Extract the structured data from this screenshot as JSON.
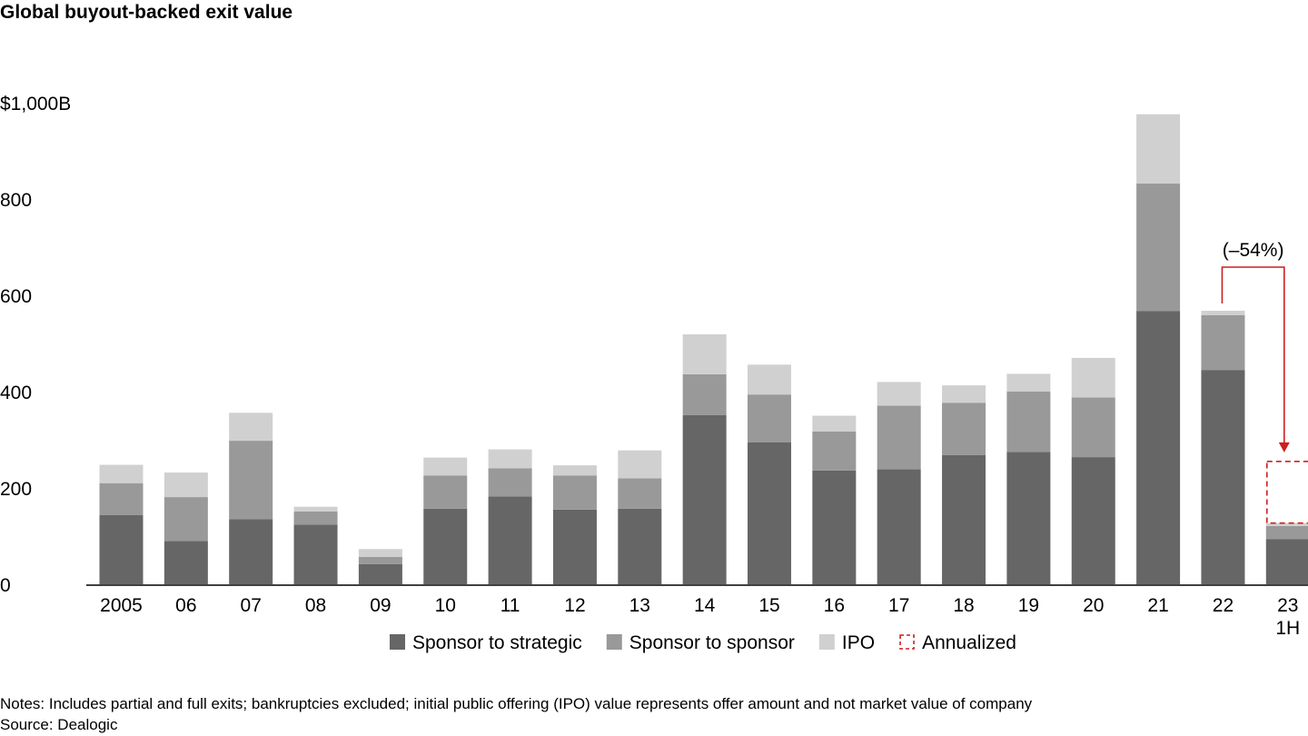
{
  "title": "Global buyout-backed exit value",
  "notes": "Notes: Includes partial and full exits; bankruptcies excluded; initial public offering (IPO) value represents offer amount and not market value of company",
  "source": "Source: Dealogic",
  "colors": {
    "sponsor_to_strategic": "#666666",
    "sponsor_to_sponsor": "#999999",
    "ipo": "#d0d0d0",
    "annualized": "#cc1f1f"
  },
  "chart_data": {
    "type": "bar",
    "stacked": true,
    "title": "Global buyout-backed exit value",
    "categories": [
      "2005",
      "06",
      "07",
      "08",
      "09",
      "10",
      "11",
      "12",
      "13",
      "14",
      "15",
      "16",
      "17",
      "18",
      "19",
      "20",
      "21",
      "22",
      "23"
    ],
    "category_sublabels": {
      "23": "1H"
    },
    "ylim": [
      0,
      1000
    ],
    "y_ticks": [
      {
        "value": 0,
        "label": "0"
      },
      {
        "value": 200,
        "label": "200"
      },
      {
        "value": 400,
        "label": "400"
      },
      {
        "value": 600,
        "label": "600"
      },
      {
        "value": 800,
        "label": "800"
      },
      {
        "value": 1000,
        "label": "$1,000B"
      }
    ],
    "grid": false,
    "series": [
      {
        "name": "Sponsor to strategic",
        "values": [
          144,
          90,
          135,
          124,
          42,
          157,
          182,
          155,
          157,
          351,
          295,
          236,
          239,
          268,
          275,
          264,
          567,
          445,
          94
        ]
      },
      {
        "name": "Sponsor to sponsor",
        "values": [
          66,
          91,
          163,
          27,
          15,
          69,
          59,
          71,
          63,
          85,
          99,
          81,
          132,
          109,
          125,
          124,
          265,
          114,
          27
        ]
      },
      {
        "name": "IPO",
        "values": [
          38,
          51,
          58,
          10,
          16,
          37,
          39,
          21,
          58,
          83,
          62,
          33,
          49,
          36,
          37,
          82,
          144,
          9,
          6
        ]
      }
    ],
    "annualized": {
      "name": "Annualized",
      "category": "23",
      "value": 255
    },
    "annotation": {
      "text": "(–54%)",
      "from": "22",
      "to": "23"
    },
    "legend": {
      "position": "bottom",
      "items": [
        "Sponsor to strategic",
        "Sponsor to sponsor",
        "IPO",
        "Annualized"
      ]
    }
  }
}
